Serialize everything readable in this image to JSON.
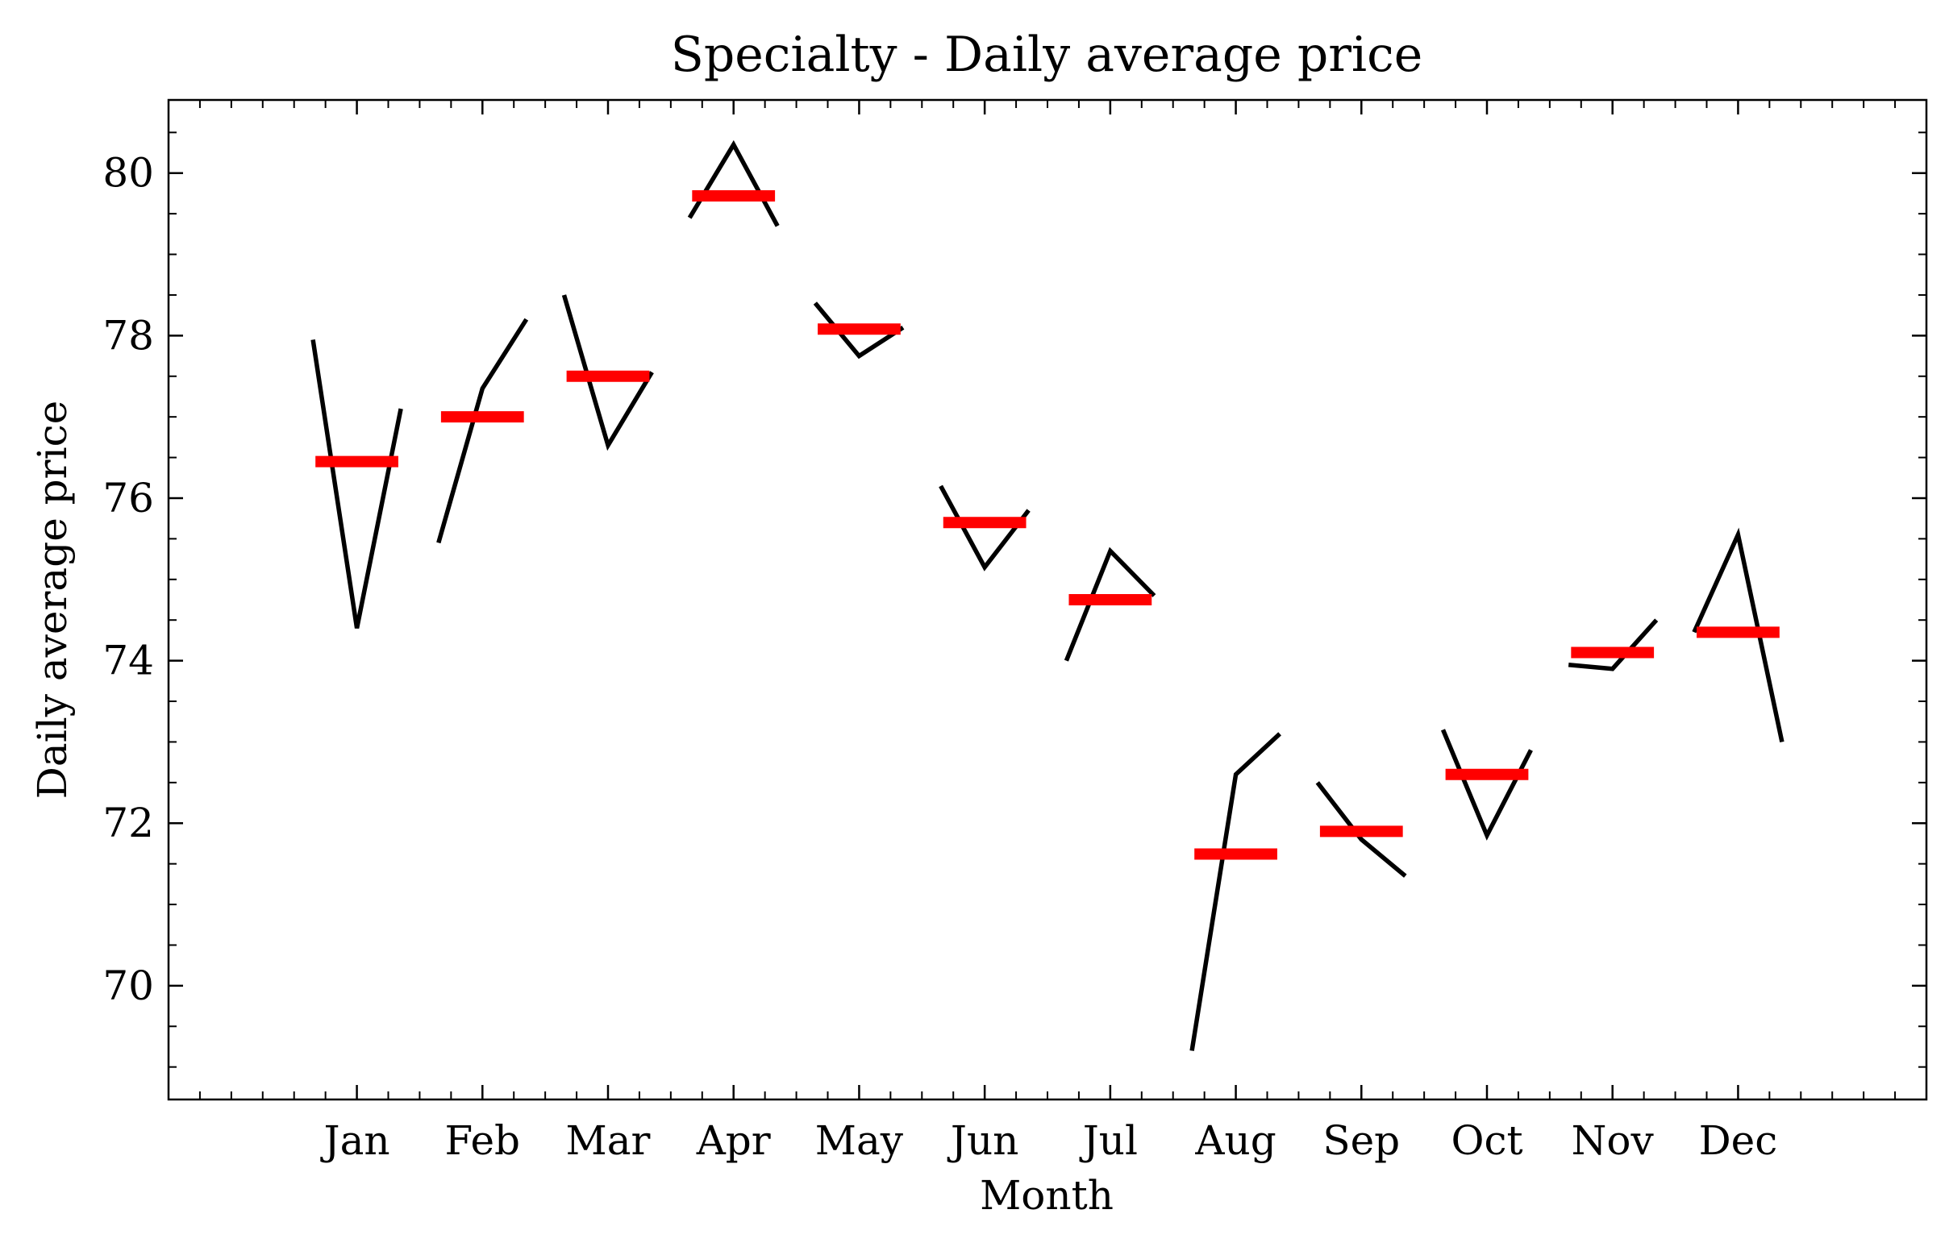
{
  "chart_data": {
    "type": "line",
    "title": "Specialty - Daily average price",
    "xlabel": "Month",
    "ylabel": "Daily average price",
    "categories": [
      "Jan",
      "Feb",
      "Mar",
      "Apr",
      "May",
      "Jun",
      "Jul",
      "Aug",
      "Sep",
      "Oct",
      "Nov",
      "Dec"
    ],
    "ylim": [
      68.6,
      80.9
    ],
    "yticks": [
      70,
      72,
      74,
      76,
      78,
      80
    ],
    "xlim": [
      -1.5,
      12.5
    ],
    "series": [
      {
        "role": "subseries",
        "color": "#000000",
        "values": [
          [
            77.95,
            74.4,
            77.1
          ],
          [
            75.45,
            77.35,
            78.2
          ],
          [
            78.5,
            76.65,
            77.55
          ],
          [
            79.45,
            80.35,
            79.35
          ],
          [
            78.4,
            77.75,
            78.1
          ],
          [
            76.15,
            75.15,
            75.85
          ],
          [
            74.0,
            75.35,
            74.8
          ],
          [
            69.2,
            72.6,
            73.1
          ],
          [
            72.5,
            71.8,
            71.35
          ],
          [
            73.15,
            71.85,
            72.9
          ],
          [
            73.95,
            73.9,
            74.5
          ],
          [
            74.35,
            75.55,
            73.0
          ]
        ]
      },
      {
        "role": "mean",
        "color": "#ff0000",
        "values": [
          76.45,
          77.0,
          77.5,
          79.72,
          78.08,
          75.7,
          74.75,
          71.62,
          71.9,
          72.6,
          74.1,
          74.35
        ]
      }
    ],
    "grid": false,
    "legend": "none"
  }
}
